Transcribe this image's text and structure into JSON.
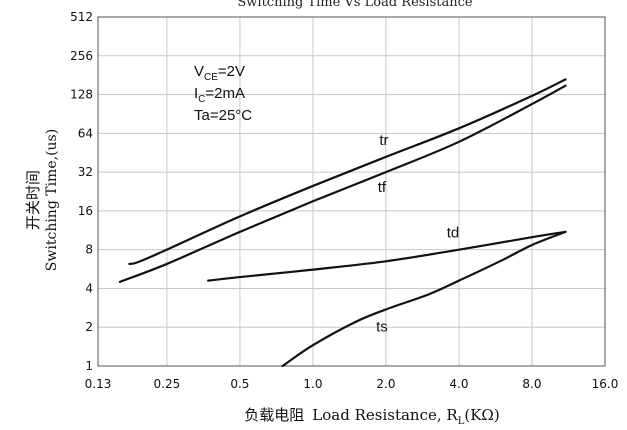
{
  "chart_data": {
    "type": "line",
    "title": "Switching Time Vs Load Resistance",
    "xlabel_cn": "负载电阻",
    "xlabel_en": "Load Resistance, ",
    "xlabel_sym": "R",
    "xlabel_sub": "L",
    "xlabel_unit": "(KΩ)",
    "ylabel_cn": "开关时间",
    "ylabel_en": "Switching Time,(us)",
    "x_scale": "log",
    "y_scale": "log",
    "xlim": [
      0.13,
      16.0
    ],
    "ylim": [
      1,
      512
    ],
    "x_ticks": [
      {
        "value": 0.13,
        "label": "0.13"
      },
      {
        "value": 0.25,
        "label": "0.25"
      },
      {
        "value": 0.5,
        "label": "0.5"
      },
      {
        "value": 1.0,
        "label": "1.0"
      },
      {
        "value": 2.0,
        "label": "2.0"
      },
      {
        "value": 4.0,
        "label": "4.0"
      },
      {
        "value": 8.0,
        "label": "8.0"
      },
      {
        "value": 16.0,
        "label": "16.0"
      }
    ],
    "y_ticks": [
      {
        "value": 1,
        "label": "1"
      },
      {
        "value": 2,
        "label": "2"
      },
      {
        "value": 4,
        "label": "4"
      },
      {
        "value": 8,
        "label": "8"
      },
      {
        "value": 16,
        "label": "16"
      },
      {
        "value": 32,
        "label": "32"
      },
      {
        "value": 64,
        "label": "64"
      },
      {
        "value": 128,
        "label": "128"
      },
      {
        "value": 256,
        "label": "256"
      },
      {
        "value": 512,
        "label": "512"
      }
    ],
    "grid": true,
    "conditions": [
      {
        "main": "V",
        "sub": "CE",
        "rest": "=2V"
      },
      {
        "main": "I",
        "sub": "C",
        "rest": "=2mA"
      },
      {
        "main": "Ta=25",
        "sub": "",
        "rest": "°C"
      }
    ],
    "series": [
      {
        "name": "tr",
        "x": [
          0.175,
          0.19,
          0.25,
          0.5,
          1.0,
          2.0,
          4.0,
          8.0,
          11.0
        ],
        "y": [
          6.2,
          6.4,
          8.0,
          14.5,
          25.0,
          42.0,
          70.0,
          125.0,
          168.0
        ]
      },
      {
        "name": "tf",
        "x": [
          0.16,
          0.25,
          0.5,
          1.0,
          2.0,
          4.0,
          8.0,
          11.0
        ],
        "y": [
          4.5,
          6.2,
          11.0,
          19.0,
          32.0,
          55.0,
          108.0,
          150.0
        ]
      },
      {
        "name": "td",
        "x": [
          0.37,
          0.5,
          1.0,
          2.0,
          4.0,
          8.0,
          11.0
        ],
        "y": [
          4.6,
          4.9,
          5.6,
          6.5,
          8.0,
          10.0,
          11.0
        ]
      },
      {
        "name": "ts",
        "x": [
          0.75,
          1.0,
          1.5,
          2.0,
          3.0,
          4.0,
          6.0,
          8.0,
          11.0
        ],
        "y": [
          1.0,
          1.45,
          2.2,
          2.75,
          3.6,
          4.6,
          6.6,
          8.7,
          11.0
        ]
      }
    ]
  }
}
